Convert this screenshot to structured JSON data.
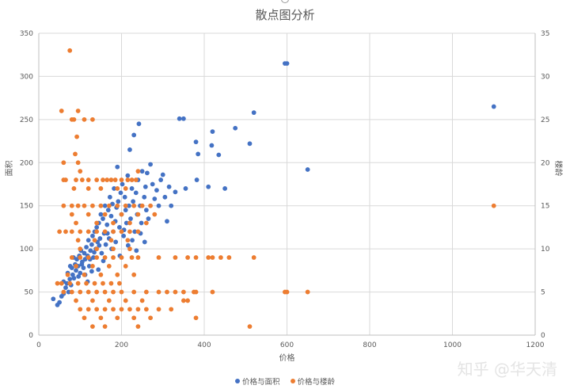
{
  "chart_data": {
    "type": "scatter",
    "title": "散点图分析",
    "xlabel": "价格",
    "ylabel": "面积",
    "y2label": "楼龄",
    "xlim": [
      0,
      1200
    ],
    "ylim": [
      0,
      350
    ],
    "y2lim": [
      0,
      35
    ],
    "xticks": [
      0,
      200,
      400,
      600,
      800,
      1000,
      1200
    ],
    "yticks": [
      0,
      50,
      100,
      150,
      200,
      250,
      300,
      350
    ],
    "y2ticks": [
      0,
      5,
      10,
      15,
      20,
      25,
      30,
      35
    ],
    "grid": true,
    "legend": "bottom",
    "series": [
      {
        "name": "价格与面积",
        "color": "#4472c4",
        "axis": "left",
        "points": [
          [
            35,
            42
          ],
          [
            45,
            35
          ],
          [
            50,
            38
          ],
          [
            55,
            45
          ],
          [
            60,
            62
          ],
          [
            65,
            55
          ],
          [
            70,
            72
          ],
          [
            72,
            50
          ],
          [
            75,
            65
          ],
          [
            78,
            58
          ],
          [
            80,
            78
          ],
          [
            82,
            70
          ],
          [
            85,
            66
          ],
          [
            88,
            82
          ],
          [
            90,
            75
          ],
          [
            92,
            88
          ],
          [
            95,
            80
          ],
          [
            98,
            92
          ],
          [
            100,
            72
          ],
          [
            102,
            98
          ],
          [
            105,
            85
          ],
          [
            108,
            78
          ],
          [
            110,
            95
          ],
          [
            112,
            88
          ],
          [
            115,
            102
          ],
          [
            118,
            92
          ],
          [
            120,
            110
          ],
          [
            122,
            80
          ],
          [
            125,
            98
          ],
          [
            128,
            105
          ],
          [
            130,
            115
          ],
          [
            132,
            90
          ],
          [
            135,
            120
          ],
          [
            138,
            100
          ],
          [
            140,
            125
          ],
          [
            142,
            108
          ],
          [
            145,
            130
          ],
          [
            148,
            112
          ],
          [
            150,
            140
          ],
          [
            152,
            95
          ],
          [
            155,
            135
          ],
          [
            158,
            118
          ],
          [
            160,
            150
          ],
          [
            162,
            105
          ],
          [
            165,
            128
          ],
          [
            168,
            145
          ],
          [
            170,
            112
          ],
          [
            172,
            160
          ],
          [
            175,
            138
          ],
          [
            178,
            152
          ],
          [
            180,
            120
          ],
          [
            182,
            170
          ],
          [
            185,
            132
          ],
          [
            188,
            148
          ],
          [
            190,
            195
          ],
          [
            192,
            155
          ],
          [
            195,
            125
          ],
          [
            198,
            165
          ],
          [
            200,
            140
          ],
          [
            202,
            175
          ],
          [
            205,
            115
          ],
          [
            208,
            160
          ],
          [
            210,
            145
          ],
          [
            212,
            130
          ],
          [
            215,
            185
          ],
          [
            218,
            150
          ],
          [
            220,
            215
          ],
          [
            222,
            135
          ],
          [
            225,
            170
          ],
          [
            228,
            155
          ],
          [
            230,
            232
          ],
          [
            232,
            120
          ],
          [
            235,
            165
          ],
          [
            238,
            140
          ],
          [
            240,
            180
          ],
          [
            242,
            245
          ],
          [
            245,
            150
          ],
          [
            248,
            130
          ],
          [
            250,
            190
          ],
          [
            255,
            160
          ],
          [
            258,
            172
          ],
          [
            260,
            145
          ],
          [
            262,
            188
          ],
          [
            265,
            135
          ],
          [
            270,
            198
          ],
          [
            275,
            175
          ],
          [
            280,
            158
          ],
          [
            285,
            168
          ],
          [
            290,
            150
          ],
          [
            295,
            180
          ],
          [
            300,
            186
          ],
          [
            305,
            160
          ],
          [
            310,
            132
          ],
          [
            315,
            172
          ],
          [
            320,
            150
          ],
          [
            330,
            166
          ],
          [
            340,
            251
          ],
          [
            350,
            251
          ],
          [
            355,
            170
          ],
          [
            380,
            224
          ],
          [
            382,
            180
          ],
          [
            385,
            210
          ],
          [
            410,
            172
          ],
          [
            418,
            220
          ],
          [
            420,
            236
          ],
          [
            435,
            209
          ],
          [
            450,
            170
          ],
          [
            475,
            240
          ],
          [
            510,
            222
          ],
          [
            520,
            258
          ],
          [
            595,
            315
          ],
          [
            600,
            315
          ],
          [
            650,
            192
          ],
          [
            1100,
            265
          ],
          [
            60,
            48
          ],
          [
            68,
            60
          ],
          [
            76,
            80
          ],
          [
            84,
            90
          ],
          [
            96,
            68
          ],
          [
            104,
            82
          ],
          [
            112,
            70
          ],
          [
            124,
            88
          ],
          [
            134,
            96
          ],
          [
            146,
            104
          ],
          [
            156,
            86
          ],
          [
            166,
            118
          ],
          [
            176,
            100
          ],
          [
            186,
            108
          ],
          [
            196,
            92
          ],
          [
            206,
            122
          ],
          [
            216,
            104
          ],
          [
            226,
            110
          ],
          [
            236,
            98
          ],
          [
            246,
            118
          ],
          [
            256,
            108
          ],
          [
            128,
            74
          ],
          [
            118,
            62
          ],
          [
            144,
            76
          ]
        ]
      },
      {
        "name": "价格与楼龄",
        "color": "#ed7d31",
        "axis": "right",
        "points": [
          [
            55,
            26
          ],
          [
            75,
            33
          ],
          [
            80,
            25
          ],
          [
            85,
            25
          ],
          [
            95,
            26
          ],
          [
            110,
            25
          ],
          [
            130,
            25
          ],
          [
            92,
            23
          ],
          [
            88,
            21
          ],
          [
            60,
            20
          ],
          [
            95,
            20
          ],
          [
            100,
            19
          ],
          [
            60,
            18
          ],
          [
            65,
            18
          ],
          [
            90,
            18
          ],
          [
            105,
            18
          ],
          [
            120,
            18
          ],
          [
            140,
            18
          ],
          [
            155,
            18
          ],
          [
            165,
            18
          ],
          [
            175,
            18
          ],
          [
            185,
            18
          ],
          [
            200,
            18
          ],
          [
            215,
            18
          ],
          [
            225,
            18
          ],
          [
            235,
            18
          ],
          [
            240,
            19
          ],
          [
            85,
            17
          ],
          [
            120,
            17
          ],
          [
            150,
            17
          ],
          [
            190,
            17
          ],
          [
            210,
            17
          ],
          [
            60,
            15
          ],
          [
            80,
            15
          ],
          [
            95,
            15
          ],
          [
            110,
            15
          ],
          [
            130,
            15
          ],
          [
            150,
            15
          ],
          [
            170,
            15
          ],
          [
            190,
            15
          ],
          [
            210,
            15
          ],
          [
            230,
            15
          ],
          [
            250,
            15
          ],
          [
            270,
            15
          ],
          [
            1100,
            15
          ],
          [
            80,
            14
          ],
          [
            120,
            14
          ],
          [
            160,
            14
          ],
          [
            200,
            14
          ],
          [
            240,
            14
          ],
          [
            280,
            14
          ],
          [
            90,
            13
          ],
          [
            140,
            13
          ],
          [
            180,
            13
          ],
          [
            220,
            13
          ],
          [
            260,
            13
          ],
          [
            50,
            12
          ],
          [
            65,
            12
          ],
          [
            80,
            12
          ],
          [
            100,
            12
          ],
          [
            120,
            12
          ],
          [
            140,
            12
          ],
          [
            160,
            12
          ],
          [
            180,
            12
          ],
          [
            200,
            12
          ],
          [
            220,
            12
          ],
          [
            240,
            12
          ],
          [
            95,
            11
          ],
          [
            135,
            11
          ],
          [
            175,
            11
          ],
          [
            215,
            11
          ],
          [
            100,
            10
          ],
          [
            140,
            10
          ],
          [
            180,
            10
          ],
          [
            220,
            10
          ],
          [
            80,
            9
          ],
          [
            100,
            9
          ],
          [
            120,
            9
          ],
          [
            140,
            9
          ],
          [
            160,
            9
          ],
          [
            180,
            9
          ],
          [
            200,
            9
          ],
          [
            225,
            9
          ],
          [
            240,
            9
          ],
          [
            290,
            9
          ],
          [
            330,
            9
          ],
          [
            360,
            9
          ],
          [
            380,
            9
          ],
          [
            410,
            9
          ],
          [
            420,
            9
          ],
          [
            440,
            9
          ],
          [
            460,
            9
          ],
          [
            520,
            9
          ],
          [
            90,
            8
          ],
          [
            130,
            8
          ],
          [
            170,
            8
          ],
          [
            210,
            8
          ],
          [
            70,
            7
          ],
          [
            110,
            7
          ],
          [
            150,
            7
          ],
          [
            190,
            7
          ],
          [
            230,
            7
          ],
          [
            45,
            6
          ],
          [
            55,
            6
          ],
          [
            75,
            6
          ],
          [
            95,
            6
          ],
          [
            115,
            6
          ],
          [
            135,
            6
          ],
          [
            155,
            6
          ],
          [
            175,
            6
          ],
          [
            195,
            6
          ],
          [
            60,
            5
          ],
          [
            80,
            5
          ],
          [
            100,
            5
          ],
          [
            120,
            5
          ],
          [
            140,
            5
          ],
          [
            160,
            5
          ],
          [
            180,
            5
          ],
          [
            200,
            5
          ],
          [
            230,
            5
          ],
          [
            260,
            5
          ],
          [
            290,
            5
          ],
          [
            310,
            5
          ],
          [
            330,
            5
          ],
          [
            350,
            5
          ],
          [
            375,
            5
          ],
          [
            380,
            5
          ],
          [
            420,
            5
          ],
          [
            595,
            5
          ],
          [
            600,
            5
          ],
          [
            650,
            5
          ],
          [
            90,
            4
          ],
          [
            130,
            4
          ],
          [
            170,
            4
          ],
          [
            210,
            4
          ],
          [
            250,
            4
          ],
          [
            350,
            4
          ],
          [
            360,
            4
          ],
          [
            100,
            3
          ],
          [
            120,
            3
          ],
          [
            140,
            3
          ],
          [
            160,
            3
          ],
          [
            180,
            3
          ],
          [
            200,
            3
          ],
          [
            220,
            3
          ],
          [
            240,
            3
          ],
          [
            260,
            3
          ],
          [
            290,
            3
          ],
          [
            320,
            3
          ],
          [
            110,
            2
          ],
          [
            150,
            2
          ],
          [
            190,
            2
          ],
          [
            230,
            2
          ],
          [
            270,
            2
          ],
          [
            380,
            2
          ],
          [
            130,
            1
          ],
          [
            160,
            1
          ],
          [
            240,
            1
          ],
          [
            510,
            1
          ]
        ]
      }
    ]
  },
  "watermark": "知乎 @华天清"
}
